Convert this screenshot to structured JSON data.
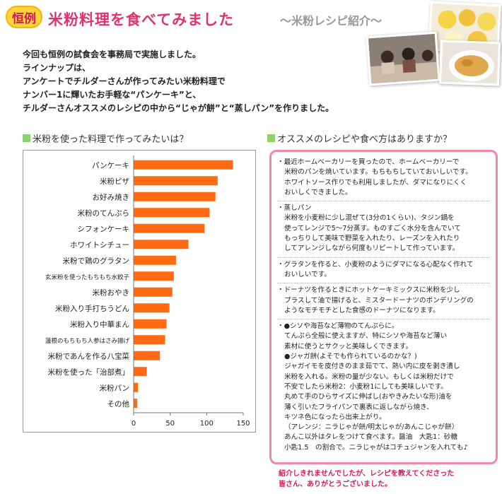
{
  "header": {
    "badge": "恒例",
    "title": "米粉料理を食べてみました",
    "subtitle": "～米粉レシピ紹介～"
  },
  "intro": {
    "lines": [
      "今回も恒例の試食会を事務局で実施しました。",
      "ラインナップは、",
      "アンケートでチルダーさんが作ってみたい米粉料理で",
      "ナンバー1に輝いたお手軽な“パンケーキ”と、",
      "チルダーさんオススメのレシピの中から“じゃが餅”と“蒸しパン”を作りました。"
    ]
  },
  "colors": {
    "bar": "#ff6a13",
    "accent": "#e0336e",
    "heading_square": "#8ed16f",
    "box_border": "#ef8aa0"
  },
  "chart_data": {
    "type": "bar",
    "orientation": "horizontal",
    "title": "米粉を使った料理で作ってみたいは？",
    "categories": [
      "パンケーキ",
      "米粉ピザ",
      "お好み焼き",
      "米粉のてんぷら",
      "シフォンケーキ",
      "ホワイトシチュー",
      "米粉で鶏のグラタン",
      "玄米粉を使ったもちもち水餃子",
      "米粉おやき",
      "米粉入り手打ちうどん",
      "米粉入り中華まん",
      "蓮根のもちもち人参はさみ揚げ",
      "米粉であんを作る八宝菜",
      "米粉を使った「治部煮」",
      "米粉パン",
      "その他"
    ],
    "values": [
      136,
      115,
      112,
      104,
      97,
      75,
      58,
      55,
      53,
      49,
      45,
      43,
      36,
      18,
      6,
      5
    ],
    "xlim": [
      0,
      150
    ],
    "xticks": [
      0,
      50,
      100,
      150
    ],
    "grid": false
  },
  "recipes": {
    "heading": "オススメのレシピや食べ方はありますか？",
    "items": [
      {
        "lines": [
          "最近ホームベーカリーを買ったので、ホームベーカリーで",
          "米粉のパンを焼いています。もちもちしていておいしいです。",
          "ホワイトソース作りでも利用しましたが、ダマになりにくく",
          "おいしくできました。"
        ]
      },
      {
        "lines": [
          "蒸しパン",
          "米粉を小麦粉に少し混ぜて(3分の1くらい)、タジン鍋を",
          "使ってレンジで5～7分蒸す。ものすごく水分を含んでいて",
          "もっちりして美味で野菜を入れたり、レーズンを入れたり",
          "してアレンジしながら何度もリピートして作っています。"
        ]
      },
      {
        "lines": [
          "グラタンを作ると、小麦粉のようにダマになる心配なく作れて",
          "おいしいです。"
        ]
      },
      {
        "lines": [
          "ドーナツを作るときにホットケーキミックスに米粉を少し",
          "プラスして油で揚げると、ミスタードーナツのポンデリングの",
          "ようなモチモチとした食感のドーナツになります。"
        ]
      },
      {
        "lines": [
          "●シソや海苔など薄物のてんぷらに。",
          "てんぷら全般に使えますが、特にシソや海苔など薄い",
          "素材に使うとサクッと美味しくできます。",
          "●ジャガ餅(よそでも作られているのかな？)",
          "ジャガイモを皮付きのまま茹でて、熱い内に皮を剥き潰し",
          "米粉を入れる。米粉の量が少ない。もしくは米粉だけで",
          "不安でしたら米粉2：小麦粉1にしても美味しいです。",
          "丸めて手のひらサイズに伸ばし(おやきみたいな形)油を",
          "薄く引いたフライパンで裏表に返しながら焼き、",
          "キツネ色になったら出来上がり。",
          "（アレンジ：ニラじゃが餅/明太じゃが/あんこじゃが餅）",
          "あんこ以外はタレをつけて食べます。醤油　大匙1：砂糖",
          "小匙1.5　の割合で。ニラじゃがはコチュジャンを入れても♪"
        ]
      }
    ]
  },
  "footer": {
    "lines": [
      "紹介しきれませんでしたが、レシピを教えてくださった",
      "皆さん、ありがとうございました。"
    ]
  }
}
